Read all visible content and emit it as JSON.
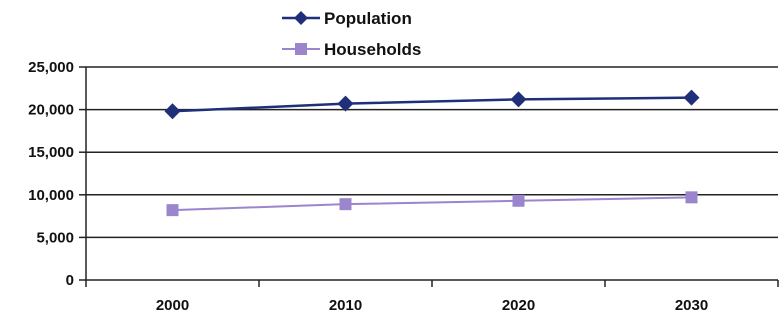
{
  "chart_data": {
    "type": "line",
    "categories": [
      "2000",
      "2010",
      "2020",
      "2030"
    ],
    "series": [
      {
        "name": "Population",
        "values": [
          19800,
          20700,
          21200,
          21400
        ],
        "color": "#1f2f7a",
        "marker": "diamond"
      },
      {
        "name": "Households",
        "values": [
          8200,
          8900,
          9300,
          9700
        ],
        "color": "#9b85cc",
        "marker": "square"
      }
    ],
    "ylim": [
      0,
      25000
    ],
    "yticks": [
      0,
      5000,
      10000,
      15000,
      20000,
      25000
    ],
    "ytick_labels": [
      "0",
      "5,000",
      "10,000",
      "15,000",
      "20,000",
      "25,000"
    ],
    "grid": true,
    "legend_position": "top-center",
    "title": "",
    "xlabel": "",
    "ylabel": ""
  }
}
